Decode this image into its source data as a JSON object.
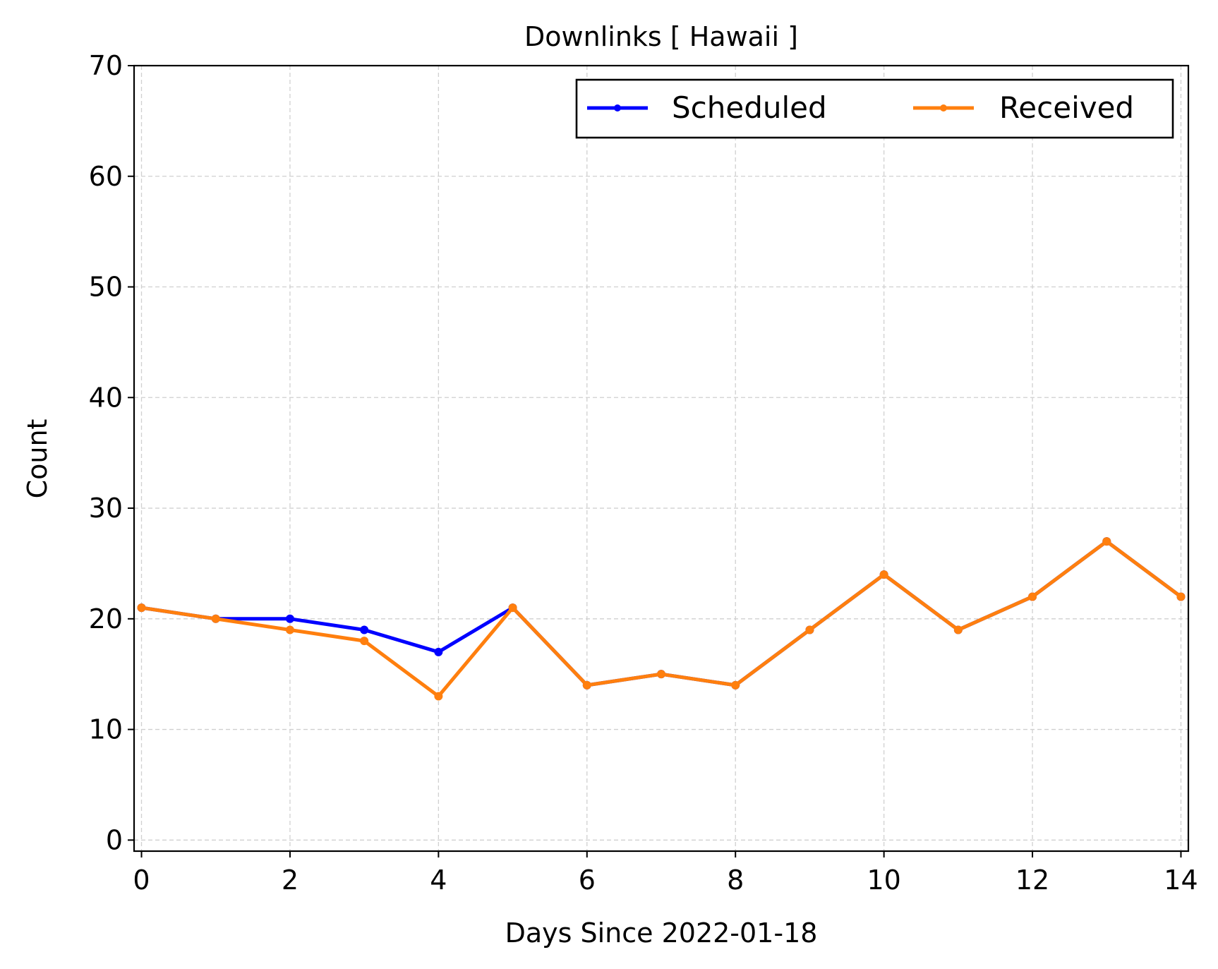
{
  "chart_data": {
    "type": "line",
    "title": "Downlinks [ Hawaii ]",
    "xlabel": "Days Since 2022-01-18",
    "ylabel": "Count",
    "xlim": [
      -0.1,
      14.1
    ],
    "ylim": [
      -1,
      70
    ],
    "xticks": [
      0,
      2,
      4,
      6,
      8,
      10,
      12,
      14
    ],
    "yticks": [
      0,
      10,
      20,
      30,
      40,
      50,
      60,
      70
    ],
    "grid": true,
    "legend_position": "top-right",
    "x": [
      0,
      1,
      2,
      3,
      4,
      5,
      6,
      7,
      8,
      9,
      10,
      11,
      12,
      13,
      14
    ],
    "series": [
      {
        "name": "Scheduled",
        "color": "#0000ff",
        "values": [
          21,
          20,
          20,
          19,
          17,
          21,
          14,
          15,
          14,
          19,
          24,
          19,
          22,
          27,
          22
        ]
      },
      {
        "name": "Received",
        "color": "#ff7f0e",
        "values": [
          21,
          20,
          19,
          18,
          13,
          21,
          14,
          15,
          14,
          19,
          24,
          19,
          22,
          27,
          22
        ]
      }
    ]
  }
}
